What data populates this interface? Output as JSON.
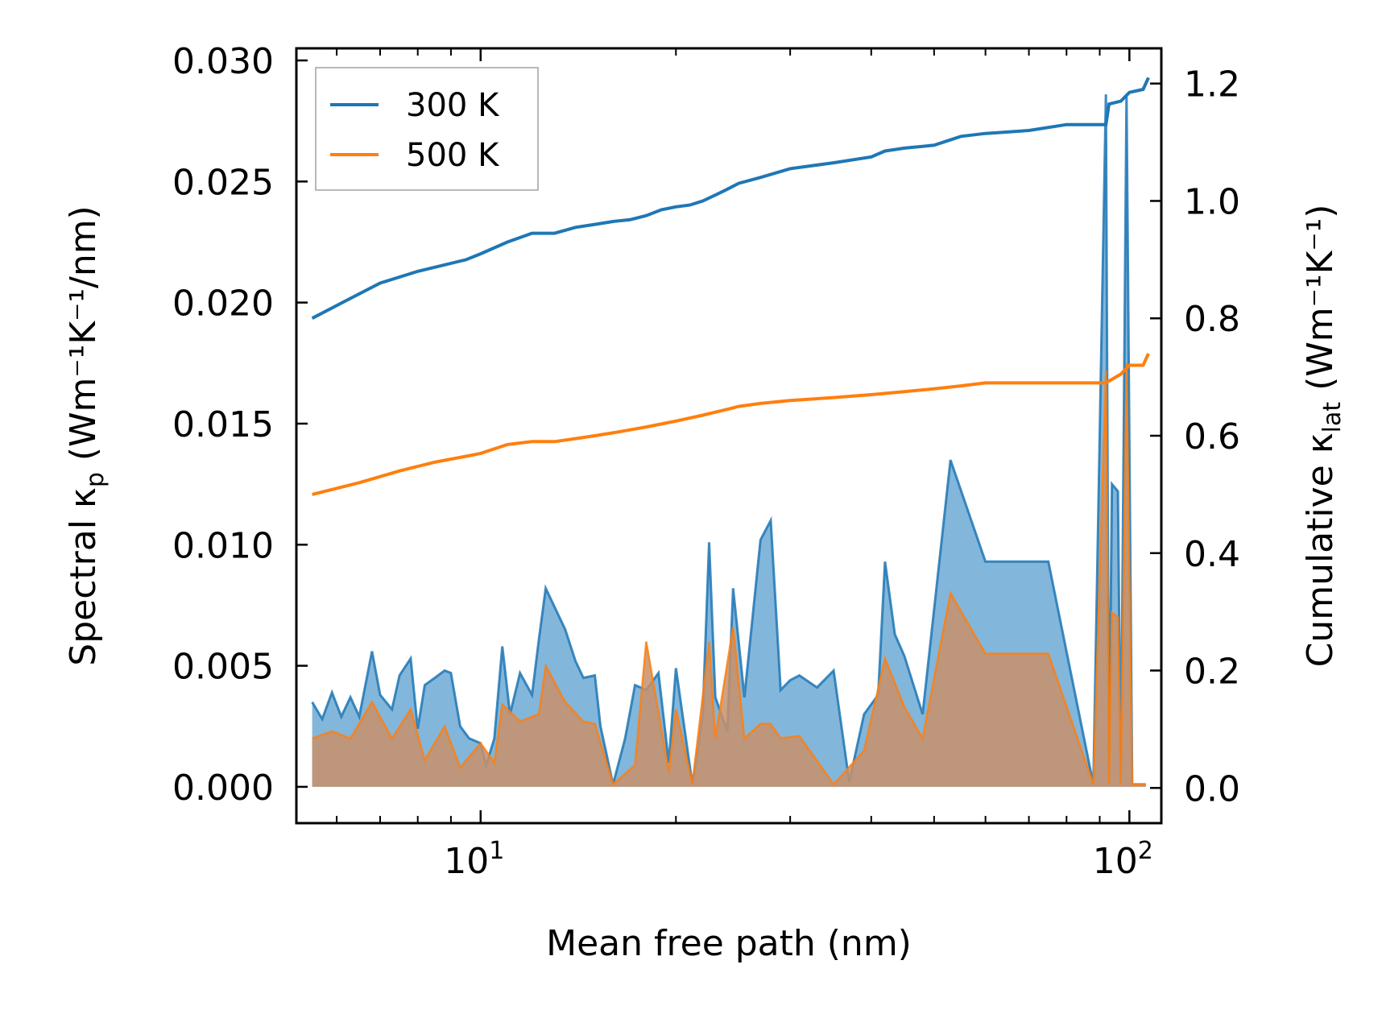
{
  "chart_data": {
    "type": "line",
    "xscale": "log",
    "x_range": [
      5.2,
      112
    ],
    "xlabel": "Mean free path (nm)",
    "ylabel_left": {
      "main": "Spectral κ",
      "sub": "p",
      "units": "(Wm⁻¹K⁻¹/nm)"
    },
    "ylabel_right": {
      "main": "Cumulative κ",
      "sub": "lat",
      "units": "(Wm⁻¹K⁻¹)"
    },
    "y_left_range": [
      -0.0015,
      0.0305
    ],
    "y_right_range": [
      -0.06,
      1.26
    ],
    "x_ticks": [
      {
        "value": 10,
        "base": "10",
        "exp": "1"
      },
      {
        "value": 100,
        "base": "10",
        "exp": "2"
      }
    ],
    "y_left_ticks": [
      {
        "value": 0.0,
        "label": "0.000"
      },
      {
        "value": 0.005,
        "label": "0.005"
      },
      {
        "value": 0.01,
        "label": "0.010"
      },
      {
        "value": 0.015,
        "label": "0.015"
      },
      {
        "value": 0.02,
        "label": "0.020"
      },
      {
        "value": 0.025,
        "label": "0.025"
      },
      {
        "value": 0.03,
        "label": "0.030"
      }
    ],
    "y_right_ticks": [
      {
        "value": 0.0,
        "label": "0.0"
      },
      {
        "value": 0.2,
        "label": "0.2"
      },
      {
        "value": 0.4,
        "label": "0.4"
      },
      {
        "value": 0.6,
        "label": "0.6"
      },
      {
        "value": 0.8,
        "label": "0.8"
      },
      {
        "value": 1.0,
        "label": "1.0"
      },
      {
        "value": 1.2,
        "label": "1.2"
      }
    ],
    "legend": {
      "position": "top-left",
      "entries": [
        "300 K",
        "500 K"
      ]
    },
    "colors": {
      "300 K": "#1f77b4",
      "500 K": "#ff7f0e",
      "fill_300": "#5a9ecf",
      "fill_500": "#c8916a"
    },
    "series": [
      {
        "name": "300 K",
        "cumulative_x": [
          5.5,
          6.2,
          7.0,
          8.0,
          9.5,
          10.0,
          11.0,
          12.0,
          13.0,
          14.0,
          15.0,
          16.0,
          17.0,
          18.0,
          19.0,
          20.0,
          21.0,
          22.0,
          23.0,
          24.0,
          25.0,
          27.0,
          30.0,
          35.0,
          40.0,
          42.0,
          45.0,
          50.0,
          55.0,
          60.0,
          70.0,
          80.0,
          92.0,
          93.0,
          97.0,
          100.0,
          105.0,
          107.0
        ],
        "cumulative_y": [
          0.8,
          0.83,
          0.86,
          0.88,
          0.9,
          0.91,
          0.93,
          0.945,
          0.945,
          0.955,
          0.96,
          0.965,
          0.968,
          0.975,
          0.985,
          0.99,
          0.993,
          1.0,
          1.01,
          1.02,
          1.03,
          1.04,
          1.055,
          1.065,
          1.075,
          1.085,
          1.09,
          1.095,
          1.11,
          1.115,
          1.12,
          1.13,
          1.13,
          1.165,
          1.17,
          1.185,
          1.19,
          1.21
        ],
        "spectral_x": [
          5.5,
          5.7,
          5.9,
          6.1,
          6.3,
          6.5,
          6.8,
          7.0,
          7.3,
          7.5,
          7.8,
          8.0,
          8.2,
          8.5,
          8.8,
          9.0,
          9.3,
          9.6,
          10.0,
          10.2,
          10.5,
          10.8,
          11.1,
          11.5,
          12.0,
          12.3,
          12.6,
          13.5,
          14.0,
          14.4,
          15.0,
          15.3,
          16.0,
          16.7,
          17.3,
          18.0,
          18.8,
          19.5,
          20.0,
          21.2,
          22.0,
          22.5,
          23.0,
          24.0,
          24.5,
          25.5,
          27.0,
          28.0,
          29.0,
          30.0,
          31.0,
          33.0,
          35.0,
          37.0,
          39.0,
          41.0,
          42.0,
          43.5,
          45.0,
          48.0,
          53.0,
          60.0,
          68.0,
          75.0,
          88.0,
          92.0,
          93.0,
          94.0,
          96.0,
          97.0,
          99.0,
          101.0,
          104.0,
          105.0,
          106.0
        ],
        "spectral_y": [
          0.0035,
          0.0028,
          0.0039,
          0.0029,
          0.0037,
          0.0029,
          0.0056,
          0.0038,
          0.0032,
          0.0046,
          0.0053,
          0.0024,
          0.0042,
          0.0045,
          0.0048,
          0.0047,
          0.0025,
          0.002,
          0.0018,
          0.0009,
          0.002,
          0.0058,
          0.003,
          0.0047,
          0.0038,
          0.0061,
          0.0082,
          0.0065,
          0.0052,
          0.0045,
          0.0046,
          0.0025,
          0.0001,
          0.002,
          0.0042,
          0.004,
          0.0047,
          0.001,
          0.0049,
          0.0001,
          0.003,
          0.0101,
          0.0037,
          0.0023,
          0.0082,
          0.0037,
          0.0102,
          0.011,
          0.004,
          0.0044,
          0.0046,
          0.0041,
          0.0048,
          0.0002,
          0.003,
          0.0038,
          0.0093,
          0.0063,
          0.0054,
          0.003,
          0.0135,
          0.0093,
          0.0093,
          0.0093,
          0.0001,
          0.0286,
          0.0002,
          0.0125,
          0.0122,
          0.0002,
          0.0286,
          0.0001,
          0.0001,
          0.0001,
          0.0001
        ],
        "spectral_peaks": [
          [
            5.5,
            0.0035
          ],
          [
            5.7,
            0.0028
          ],
          [
            5.9,
            0.0039
          ],
          [
            6.1,
            0.0029
          ],
          [
            6.3,
            0.0037
          ],
          [
            6.5,
            0.0029
          ],
          [
            6.8,
            0.0056
          ],
          [
            7.0,
            0.0038
          ],
          [
            7.3,
            0.0032
          ],
          [
            7.5,
            0.0046
          ],
          [
            7.8,
            0.0053
          ],
          [
            8.0,
            0.0024
          ],
          [
            8.2,
            0.0042
          ],
          [
            8.5,
            0.0045
          ],
          [
            8.8,
            0.0048
          ],
          [
            9.0,
            0.0047
          ],
          [
            9.3,
            0.0025
          ],
          [
            9.6,
            0.002
          ],
          [
            10.0,
            0.0018
          ],
          [
            10.2,
            0.0009
          ],
          [
            10.5,
            0.002
          ],
          [
            10.8,
            0.0058
          ],
          [
            11.1,
            0.003
          ],
          [
            11.5,
            0.0047
          ],
          [
            12.0,
            0.0038
          ],
          [
            12.3,
            0.0061
          ],
          [
            12.6,
            0.0082
          ],
          [
            13.5,
            0.0065
          ],
          [
            14.0,
            0.0052
          ],
          [
            14.4,
            0.0045
          ],
          [
            15.0,
            0.0046
          ],
          [
            15.3,
            0.0025
          ],
          [
            16.0,
            0.0001
          ]
        ]
      },
      {
        "name": "500 K",
        "cumulative_x": [
          5.5,
          6.5,
          7.5,
          8.5,
          9.5,
          10.0,
          11.0,
          12.0,
          13.0,
          14.0,
          15.0,
          16.0,
          17.0,
          18.0,
          19.0,
          20.0,
          22.0,
          24.0,
          25.0,
          27.0,
          30.0,
          35.0,
          40.0,
          45.0,
          50.0,
          55.0,
          60.0,
          70.0,
          80.0,
          92.0,
          97.0,
          100.0,
          105.0,
          107.0
        ],
        "cumulative_y": [
          0.5,
          0.52,
          0.54,
          0.555,
          0.565,
          0.57,
          0.585,
          0.59,
          0.59,
          0.595,
          0.6,
          0.605,
          0.61,
          0.615,
          0.62,
          0.625,
          0.635,
          0.645,
          0.65,
          0.655,
          0.66,
          0.665,
          0.67,
          0.675,
          0.68,
          0.685,
          0.69,
          0.69,
          0.69,
          0.69,
          0.705,
          0.72,
          0.72,
          0.74
        ],
        "spectral_x": [
          5.5,
          5.9,
          6.3,
          6.8,
          7.3,
          7.8,
          8.2,
          8.8,
          9.3,
          10.0,
          10.5,
          10.8,
          11.5,
          12.3,
          12.6,
          13.5,
          14.4,
          15.0,
          16.0,
          17.3,
          18.0,
          19.5,
          20.0,
          21.2,
          22.5,
          23.0,
          24.5,
          25.5,
          27.0,
          28.0,
          29.0,
          31.0,
          35.0,
          39.0,
          42.0,
          45.0,
          48.0,
          53.0,
          60.0,
          68.0,
          75.0,
          88.0,
          92.0,
          93.0,
          94.0,
          96.0,
          97.0,
          99.0,
          101.0,
          104.0,
          105.0,
          106.0
        ],
        "spectral_y": [
          0.002,
          0.0023,
          0.002,
          0.0035,
          0.002,
          0.0032,
          0.0011,
          0.0025,
          0.0008,
          0.0018,
          0.001,
          0.0034,
          0.0027,
          0.003,
          0.005,
          0.0035,
          0.0027,
          0.0026,
          0.0001,
          0.0009,
          0.006,
          0.0006,
          0.0032,
          0.0001,
          0.006,
          0.002,
          0.0066,
          0.002,
          0.0026,
          0.0026,
          0.002,
          0.0021,
          0.0001,
          0.0015,
          0.0053,
          0.0033,
          0.002,
          0.008,
          0.0055,
          0.0055,
          0.0055,
          0.0001,
          0.0172,
          0.0001,
          0.0072,
          0.007,
          0.0001,
          0.0175,
          0.0001,
          0.0001,
          0.0001,
          0.0001
        ]
      }
    ]
  }
}
